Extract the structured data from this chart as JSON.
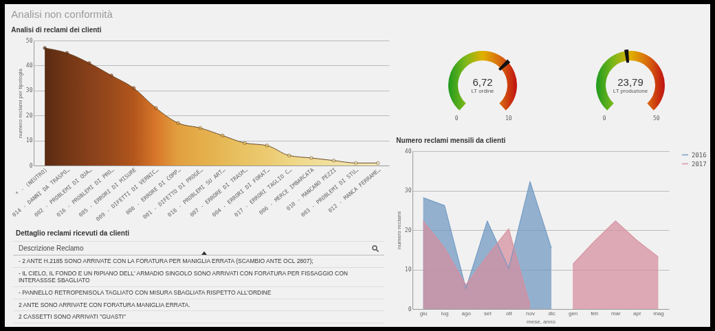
{
  "chart_data": [
    {
      "type": "area",
      "title": "Analisi non conformità",
      "subtitle": "Analisi di reclami dei clienti",
      "ylabel": "numero reclami per tipologia",
      "categories": [
        "* - (NEUTRO)",
        "014 - DANNI DA TRASPO…",
        "002 - PROBLEMI DI QUA…",
        "016 - PROBLEMI DI PRO…",
        "005 - ERRORI DI MISURE",
        "009 - DIFETTI DI VERNIC…",
        "008 - ERRORE DI COMP…",
        "001 - DIFETTO DI PROGE…",
        "018 - PROBLEMI SU ART…",
        "007 - ERRORE DI TRASM…",
        "004 - ERRORI DI FORAT…",
        "017 - ERRORI TAGLIO C…",
        "006 - MERCE IMBARCATA",
        "010 - MANCANO PEZZI",
        "003 - PROBLEMI DI STU…",
        "012 - MANCA FERRAME…"
      ],
      "values": [
        47,
        45,
        41,
        36,
        31,
        23,
        17,
        15,
        12,
        9,
        8,
        4,
        3,
        2,
        1,
        1
      ],
      "colors": [
        "#5a2a12",
        "#733716",
        "#87401a",
        "#9a4a1c",
        "#b2561c",
        "#d8772a",
        "#e2a040",
        "#e4ad4a",
        "#e6b856",
        "#e9c364",
        "#ebca70",
        "#eed684",
        "#f0dc94",
        "#f1e0a0",
        "#f2e5ac",
        "#f3e9b8"
      ],
      "ylim": [
        0,
        50
      ],
      "yticks": [
        0,
        10,
        20,
        30,
        40,
        50
      ],
      "grid": "y",
      "marker": "circle"
    },
    {
      "type": "other",
      "values": [
        6.72
      ],
      "value_labels": [
        "6,72"
      ],
      "xlabel": "LT ordine",
      "annotations": [
        "0",
        "10"
      ]
    },
    {
      "type": "other",
      "values": [
        23.79
      ],
      "value_labels": [
        "23,79"
      ],
      "xlabel": "LT produzione",
      "annotations": [
        "0",
        "50"
      ]
    },
    {
      "type": "area",
      "title": "Numero reclami mensili da clienti",
      "xlabel": "mese, anno",
      "ylabel": "numero reclami",
      "categories": [
        "giu",
        "lug",
        "ago",
        "set",
        "ott",
        "nov",
        "dic",
        "gen",
        "feb",
        "mar",
        "apr",
        "mag"
      ],
      "series": [
        {
          "name": "2016",
          "color": "#6f98c2",
          "values": [
            28.2,
            26.2,
            5.2,
            22.3,
            10.3,
            32.3,
            15.4,
            null,
            null,
            null,
            null,
            null
          ]
        },
        {
          "name": "2017",
          "color": "#d68e9e",
          "values": [
            22.3,
            15.5,
            6.1,
            13.5,
            20.3,
            1,
            null,
            11.3,
            17.1,
            22.3,
            17.4,
            13.2
          ]
        }
      ],
      "ylim": [
        0,
        40
      ],
      "yticks": [
        0,
        10,
        20,
        30,
        40
      ],
      "grid": "y",
      "legend": "right"
    },
    {
      "type": "other",
      "title": "Dettaglio reclami ricevuti da clienti",
      "subtitle": "Descrizione Reclamo",
      "annotations": [
        "- 2 ANTE H.2185 SONO ARRIVATE CON LA FORATURA PER MANIGLIA ERRATA (SCAMBIO ANTE OCL 2807);",
        "- IL CIELO, IL FONDO E UN RIPIANO DELL' ARMADIO SINGOLO SONO ARRIVATI CON FORATURA PER FISSAGGIO CON INTERASSSE SBAGLIATO",
        "- PANNELLO RETROPENISOLA TAGLIATO CON MISURA SBAGLIATA RISPETTO ALL'ORDINE",
        "2 ANTE SONO ARRIVATE CON FORATURA MANIGLIA ERRATA.",
        "2 CASSETTI SONO ARRIVATI \"GUASTI\""
      ]
    }
  ]
}
